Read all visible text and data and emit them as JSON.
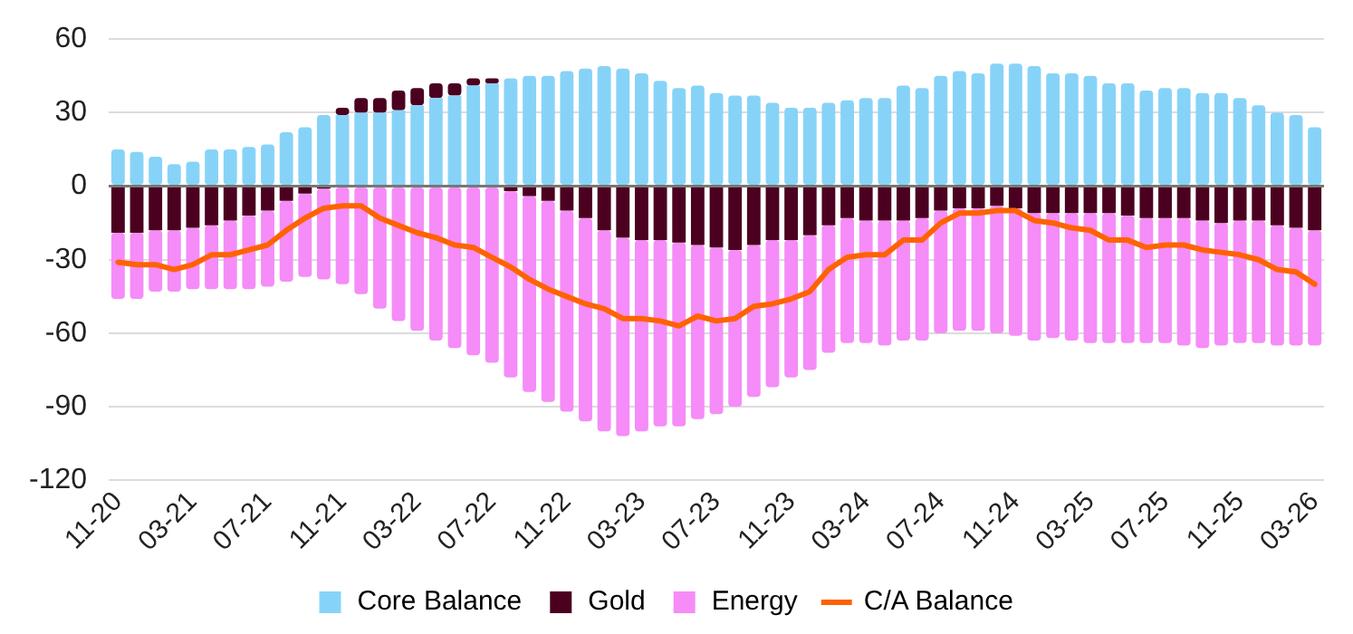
{
  "chart_data": {
    "type": "bar",
    "stacked": true,
    "grid": "y",
    "legend": "bottom",
    "categories": [
      "11-20",
      null,
      null,
      null,
      "03-21",
      null,
      null,
      null,
      "07-21",
      null,
      null,
      null,
      "11-21",
      null,
      null,
      null,
      "03-22",
      null,
      null,
      null,
      "07-22",
      null,
      null,
      null,
      "11-22",
      null,
      null,
      null,
      "03-23",
      null,
      null,
      null,
      "07-23",
      null,
      null,
      null,
      "11-23",
      null,
      null,
      null,
      "03-24",
      null,
      null,
      null,
      "07-24",
      null,
      null,
      null,
      "11-24",
      null,
      null,
      null,
      "03-25",
      null,
      null,
      null,
      "07-25",
      null,
      null,
      null,
      "11-25",
      null,
      null,
      null,
      "03-26"
    ],
    "ylim": [
      -120,
      60
    ],
    "yticks": [
      -120,
      -90,
      -60,
      -30,
      0,
      30,
      60
    ],
    "series": [
      {
        "name": "Core Balance",
        "color": "#87d3f8",
        "values": [
          15,
          14,
          12,
          9,
          10,
          15,
          15,
          16,
          17,
          22,
          24,
          29,
          29,
          30,
          30,
          31,
          33,
          36,
          37,
          41,
          42,
          44,
          45,
          45,
          47,
          48,
          49,
          48,
          46,
          43,
          40,
          41,
          38,
          37,
          37,
          34,
          32,
          32,
          34,
          35,
          36,
          36,
          41,
          40,
          45,
          47,
          46,
          50,
          50,
          49,
          46,
          46,
          45,
          42,
          42,
          39,
          40,
          40,
          38,
          38,
          36,
          33,
          30,
          29,
          24
        ]
      },
      {
        "name": "Gold",
        "color": "#4b0020",
        "values": [
          -19,
          -19,
          -18,
          -18,
          -17,
          -16,
          -14,
          -12,
          -10,
          -6,
          -3,
          -1,
          3,
          6,
          6,
          8,
          7,
          6,
          5,
          3,
          2,
          -2,
          -4,
          -6,
          -10,
          -13,
          -18,
          -21,
          -22,
          -22,
          -23,
          -24,
          -25,
          -26,
          -24,
          -22,
          -22,
          -20,
          -16,
          -13,
          -14,
          -14,
          -14,
          -13,
          -10,
          -9,
          -9,
          -8,
          -9,
          -11,
          -11,
          -11,
          -11,
          -11,
          -12,
          -13,
          -13,
          -13,
          -14,
          -15,
          -14,
          -14,
          -16,
          -17,
          -18
        ]
      },
      {
        "name": "Energy",
        "color": "#f58cf8",
        "values": [
          -27,
          -27,
          -25,
          -25,
          -25,
          -26,
          -28,
          -30,
          -31,
          -33,
          -34,
          -37,
          -40,
          -44,
          -50,
          -55,
          -59,
          -63,
          -66,
          -69,
          -72,
          -76,
          -80,
          -82,
          -82,
          -83,
          -82,
          -81,
          -78,
          -76,
          -75,
          -71,
          -68,
          -64,
          -62,
          -60,
          -56,
          -55,
          -52,
          -51,
          -50,
          -51,
          -49,
          -50,
          -50,
          -50,
          -50,
          -52,
          -52,
          -52,
          -51,
          -52,
          -53,
          -53,
          -52,
          -51,
          -51,
          -52,
          -52,
          -50,
          -50,
          -50,
          -49,
          -48,
          -47
        ]
      },
      {
        "name": "C/A Balance",
        "color": "#ff6200",
        "type": "line",
        "values": [
          -31,
          -32,
          -32,
          -34,
          -32,
          -28,
          -28,
          -26,
          -24,
          -18,
          -13,
          -9,
          -8,
          -8,
          -13,
          -16,
          -19,
          -21,
          -24,
          -25,
          -29,
          -33,
          -38,
          -42,
          -45,
          -48,
          -50,
          -54,
          -54,
          -55,
          -57,
          -53,
          -55,
          -54,
          -49,
          -48,
          -46,
          -43,
          -34,
          -29,
          -28,
          -28,
          -22,
          -22,
          -15,
          -11,
          -11,
          -10,
          -10,
          -14,
          -15,
          -17,
          -18,
          -22,
          -22,
          -25,
          -24,
          -24,
          -26,
          -27,
          -28,
          -30,
          -34,
          -35,
          -40
        ]
      }
    ]
  }
}
